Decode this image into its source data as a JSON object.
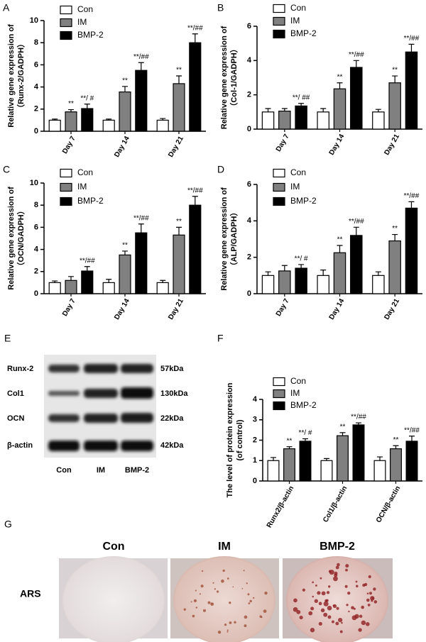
{
  "chart_data": [
    {
      "panel": "A",
      "type": "bar",
      "ylabel": [
        "Relative gene expression of",
        "（Runx-2/GADPH）"
      ],
      "categories": [
        "Day 7",
        "Day 14",
        "Day 21"
      ],
      "edgecolor": "#000000",
      "series": [
        {
          "name": "Con",
          "color": "#ffffff",
          "values": [
            1,
            1,
            1
          ],
          "errors": [
            0.1,
            0.1,
            0.15
          ],
          "annotations": [
            null,
            null,
            null
          ]
        },
        {
          "name": "IM",
          "color": "#808080",
          "values": [
            1.75,
            3.55,
            4.3
          ],
          "errors": [
            0.2,
            0.5,
            0.7
          ],
          "annotations": [
            "**",
            "**",
            "**"
          ]
        },
        {
          "name": "BMP-2",
          "color": "#000000",
          "values": [
            2.05,
            5.5,
            8.0
          ],
          "errors": [
            0.4,
            0.7,
            0.8
          ],
          "annotations": [
            "**/ #",
            "**/##",
            "**/##"
          ]
        }
      ],
      "ylim": [
        0,
        10
      ],
      "yticks": [
        0,
        2,
        4,
        6,
        8,
        10
      ],
      "legend": "upper left"
    },
    {
      "panel": "B",
      "type": "bar",
      "ylabel": [
        "Relative gene expression of",
        "（Col-1/GADPH）"
      ],
      "categories": [
        "Day 7",
        "Day 14",
        "Day 21"
      ],
      "edgecolor": "#000000",
      "series": [
        {
          "name": "Con",
          "color": "#ffffff",
          "values": [
            1,
            1,
            1
          ],
          "errors": [
            0.2,
            0.2,
            0.15
          ],
          "annotations": [
            null,
            null,
            null
          ]
        },
        {
          "name": "IM",
          "color": "#808080",
          "values": [
            1.05,
            2.35,
            2.7
          ],
          "errors": [
            0.15,
            0.35,
            0.4
          ],
          "annotations": [
            null,
            "**",
            "**"
          ]
        },
        {
          "name": "BMP-2",
          "color": "#000000",
          "values": [
            1.35,
            3.6,
            4.5
          ],
          "errors": [
            0.15,
            0.4,
            0.45
          ],
          "annotations": [
            "**/ ##",
            "**/##",
            "**/##"
          ]
        }
      ],
      "ylim": [
        0,
        6
      ],
      "yticks": [
        0,
        2,
        4,
        6
      ],
      "legend": "upper left"
    },
    {
      "panel": "C",
      "type": "bar",
      "ylabel": [
        "Relative gene expression of",
        "（OCN/GADPH）"
      ],
      "categories": [
        "Day 7",
        "Day 14",
        "Day 21"
      ],
      "edgecolor": "#000000",
      "series": [
        {
          "name": "Con",
          "color": "#ffffff",
          "values": [
            1,
            1,
            1
          ],
          "errors": [
            0.15,
            0.3,
            0.2
          ],
          "annotations": [
            null,
            null,
            null
          ]
        },
        {
          "name": "IM",
          "color": "#808080",
          "values": [
            1.2,
            3.5,
            5.3
          ],
          "errors": [
            0.35,
            0.35,
            0.7
          ],
          "annotations": [
            null,
            "**",
            "**"
          ]
        },
        {
          "name": "BMP-2",
          "color": "#000000",
          "values": [
            2.05,
            5.5,
            8.0
          ],
          "errors": [
            0.4,
            0.8,
            0.8
          ],
          "annotations": [
            "**/##",
            "**/##",
            "**/##"
          ]
        }
      ],
      "ylim": [
        0,
        10
      ],
      "yticks": [
        0,
        2,
        4,
        6,
        8,
        10
      ],
      "legend": "upper left"
    },
    {
      "panel": "D",
      "type": "bar",
      "ylabel": [
        "Relative gene expression of",
        "（ALP/GADPH）"
      ],
      "categories": [
        "Day 7",
        "Day 14",
        "Day 21"
      ],
      "edgecolor": "#000000",
      "series": [
        {
          "name": "Con",
          "color": "#ffffff",
          "values": [
            1,
            1,
            1
          ],
          "errors": [
            0.2,
            0.3,
            0.2
          ],
          "annotations": [
            null,
            null,
            null
          ]
        },
        {
          "name": "IM",
          "color": "#808080",
          "values": [
            1.25,
            2.25,
            2.9
          ],
          "errors": [
            0.3,
            0.4,
            0.35
          ],
          "annotations": [
            null,
            "**",
            "**"
          ]
        },
        {
          "name": "BMP-2",
          "color": "#000000",
          "values": [
            1.4,
            3.2,
            4.7
          ],
          "errors": [
            0.2,
            0.45,
            0.35
          ],
          "annotations": [
            "**/ #",
            "**/##",
            "**/##"
          ]
        }
      ],
      "ylim": [
        0,
        6
      ],
      "yticks": [
        0,
        2,
        4,
        6
      ],
      "legend": "upper left"
    },
    {
      "panel": "F",
      "type": "bar",
      "ylabel": [
        "The level of protein expression",
        "(of control)"
      ],
      "categories": [
        "Runx2/β-actin",
        "Col1/β-actin",
        "OCN/β-actin"
      ],
      "edgecolor": "#000000",
      "series": [
        {
          "name": "Con",
          "color": "#ffffff",
          "values": [
            1,
            1,
            1
          ],
          "errors": [
            0.15,
            0.1,
            0.18
          ],
          "annotations": [
            null,
            null,
            null
          ]
        },
        {
          "name": "IM",
          "color": "#808080",
          "values": [
            1.58,
            2.22,
            1.58
          ],
          "errors": [
            0.1,
            0.15,
            0.15
          ],
          "annotations": [
            "**",
            "**",
            "**"
          ]
        },
        {
          "name": "BMP-2",
          "color": "#000000",
          "values": [
            1.95,
            2.75,
            1.95
          ],
          "errors": [
            0.12,
            0.1,
            0.25
          ],
          "annotations": [
            "**/ #",
            "**/##",
            "**/##"
          ]
        }
      ],
      "ylim": [
        0,
        4
      ],
      "yticks": [
        0,
        1,
        2,
        3,
        4
      ],
      "legend": "upper left"
    }
  ],
  "blot": {
    "panel": "E",
    "proteins": [
      "Runx-2",
      "Col1",
      "OCN",
      "β-actin"
    ],
    "sizes": [
      "57kDa",
      "130kDa",
      "22kDa",
      "42kDa"
    ],
    "lanes": [
      "Con",
      "IM",
      "BMP-2"
    ]
  },
  "ars": {
    "panel": "G",
    "groups": [
      "Con",
      "IM",
      "BMP-2"
    ],
    "stain": "ARS"
  }
}
